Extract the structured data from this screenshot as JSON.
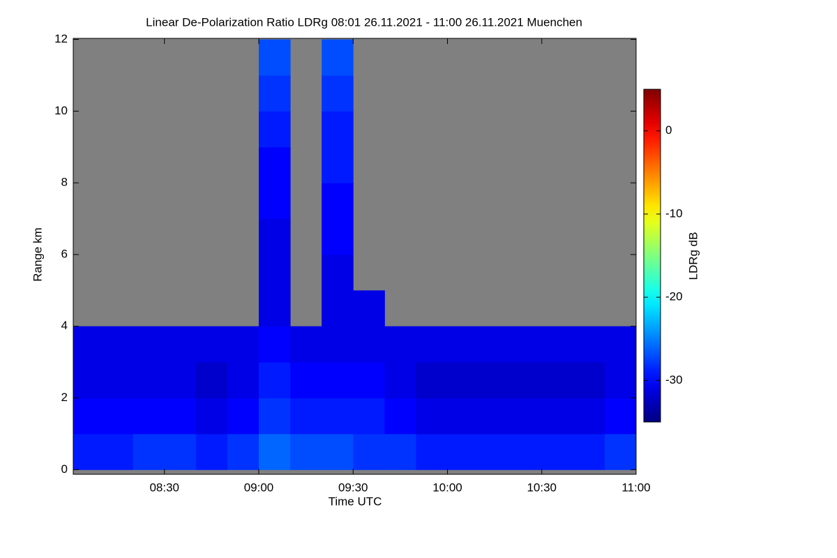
{
  "chart_data": {
    "type": "heatmap",
    "title": "Linear De-Polarization Ratio LDRg   08:01 26.11.2021 - 11:00 26.11.2021 Muenchen",
    "x_label": "Time UTC",
    "y_label": "Range km",
    "colorbar_label": "LDRg dB",
    "xlim": [
      "08:01",
      "11:00"
    ],
    "xticks": [
      "08:30",
      "09:00",
      "09:30",
      "10:00",
      "10:30",
      "11:00"
    ],
    "ylim": [
      -0.13,
      12.03
    ],
    "yticks": [
      0,
      2,
      4,
      6,
      8,
      10,
      12
    ],
    "zlim": [
      -35,
      5
    ],
    "zticks": [
      0,
      -10,
      -20,
      -30
    ],
    "colormap": "jet",
    "missing_color": "#808080",
    "x": [
      "08:05",
      "08:15",
      "08:25",
      "08:35",
      "08:45",
      "08:55",
      "09:05",
      "09:15",
      "09:25",
      "09:35",
      "09:45",
      "09:55",
      "10:05",
      "10:15",
      "10:25",
      "10:35",
      "10:45",
      "10:55"
    ],
    "y": [
      0.5,
      1.5,
      2.5,
      3.5,
      4.5,
      5.5,
      6.5,
      7.5,
      8.5,
      9.5,
      10.5,
      11.5
    ],
    "z": [
      [
        -29,
        -29,
        -28,
        -28,
        -29,
        -28,
        -26,
        -27,
        -27,
        -28,
        -28,
        -29,
        -29,
        -29,
        -29,
        -29,
        -29,
        -28
      ],
      [
        -30,
        -30,
        -30,
        -30,
        -31,
        -30,
        -28,
        -29,
        -29,
        -29,
        -30,
        -31,
        -31,
        -31,
        -31,
        -31,
        -31,
        -30
      ],
      [
        -31,
        -31,
        -31,
        -31,
        -32,
        -31,
        -29,
        -30,
        -30,
        -30,
        -31,
        -32,
        -32,
        -32,
        -32,
        -32,
        -32,
        -31
      ],
      [
        -31,
        -31,
        -31,
        -31,
        -31,
        -31,
        -30,
        -31,
        -31,
        -31,
        -31,
        -31,
        -31,
        -31,
        -31,
        -31,
        -31,
        -31
      ],
      [
        null,
        null,
        null,
        null,
        null,
        null,
        -31,
        null,
        -31,
        -31,
        null,
        null,
        null,
        null,
        null,
        null,
        null,
        null
      ],
      [
        null,
        null,
        null,
        null,
        null,
        null,
        -31,
        null,
        -31,
        null,
        null,
        null,
        null,
        null,
        null,
        null,
        null,
        null
      ],
      [
        null,
        null,
        null,
        null,
        null,
        null,
        -31,
        null,
        -30,
        null,
        null,
        null,
        null,
        null,
        null,
        null,
        null,
        null
      ],
      [
        null,
        null,
        null,
        null,
        null,
        null,
        -30,
        null,
        -30,
        null,
        null,
        null,
        null,
        null,
        null,
        null,
        null,
        null
      ],
      [
        null,
        null,
        null,
        null,
        null,
        null,
        -30,
        null,
        -29,
        null,
        null,
        null,
        null,
        null,
        null,
        null,
        null,
        null
      ],
      [
        null,
        null,
        null,
        null,
        null,
        null,
        -29,
        null,
        -29,
        null,
        null,
        null,
        null,
        null,
        null,
        null,
        null,
        null
      ],
      [
        null,
        null,
        null,
        null,
        null,
        null,
        -28,
        null,
        -28,
        null,
        null,
        null,
        null,
        null,
        null,
        null,
        null,
        null
      ],
      [
        null,
        null,
        null,
        null,
        null,
        null,
        -27,
        null,
        -27,
        null,
        null,
        null,
        null,
        null,
        null,
        null,
        null,
        null
      ]
    ]
  }
}
